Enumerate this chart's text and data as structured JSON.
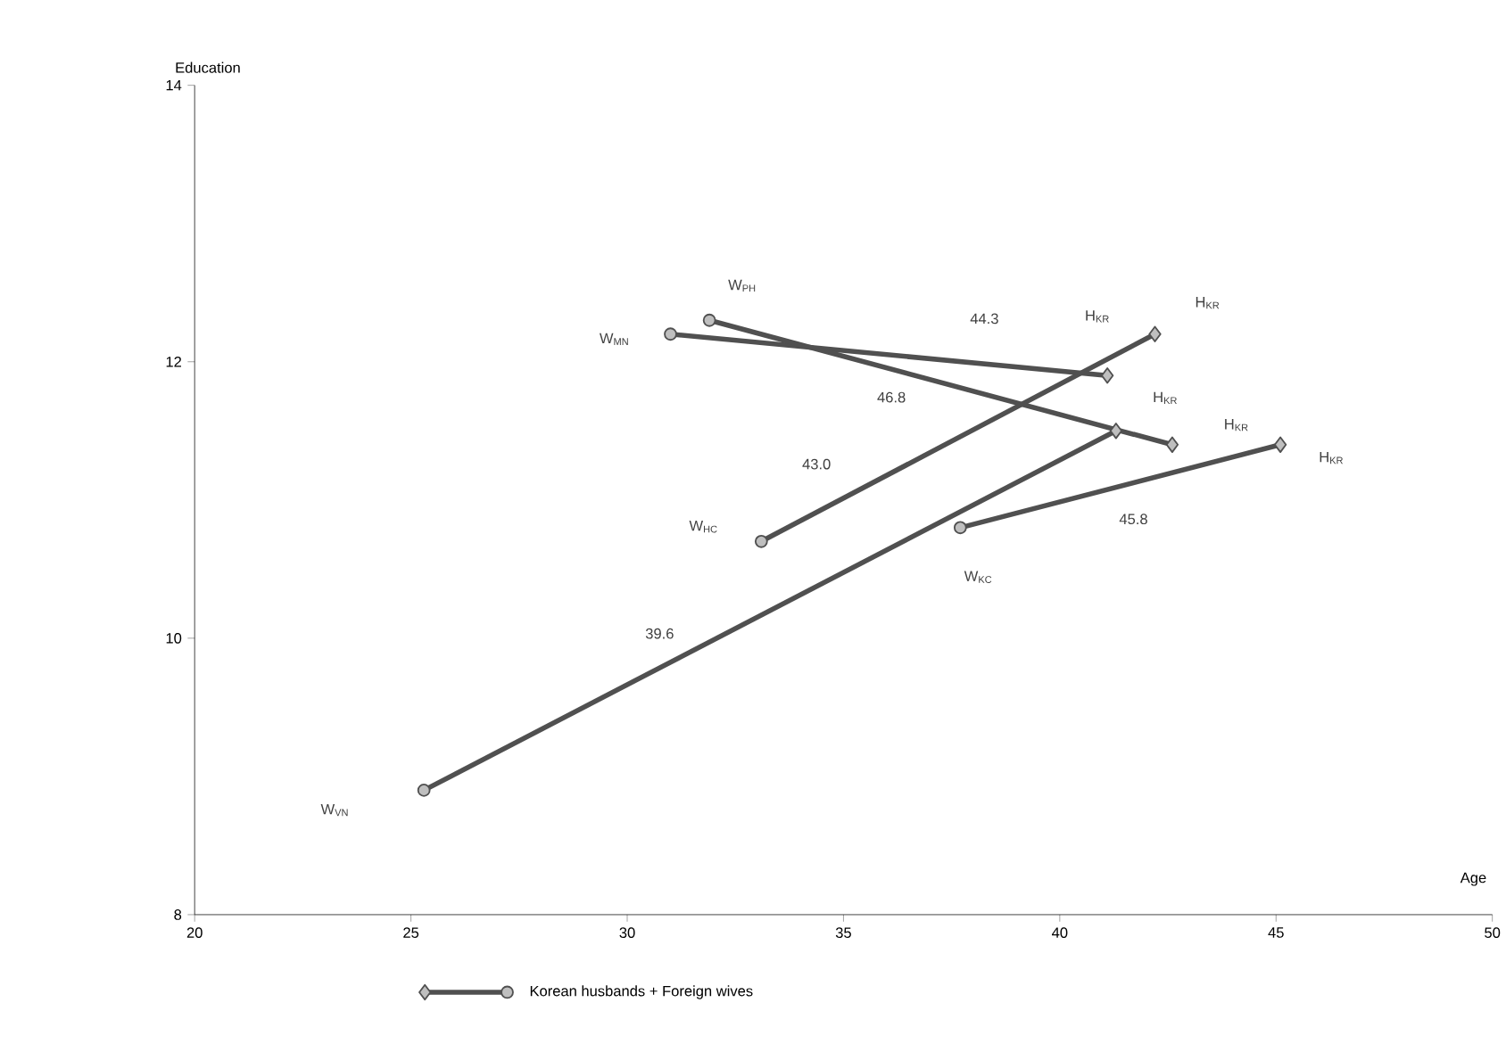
{
  "chart_data": {
    "type": "line",
    "xlabel": "Age",
    "ylabel": "Education",
    "xlim": [
      20,
      50
    ],
    "xticks": [
      20,
      25,
      30,
      35,
      40,
      45,
      50
    ],
    "ylim": [
      8,
      14
    ],
    "yticks": [
      8,
      10,
      12,
      14
    ],
    "marker": [
      "diamond",
      "circle"
    ],
    "legend": "bottom",
    "grid": false,
    "series": [
      {
        "name": "Korean husbands + Foreign wives",
        "color": "#505050",
        "x": [
          41.3,
          25.3
        ],
        "values": [
          11.5,
          8.9
        ]
      },
      {
        "color": "#505050",
        "x": [
          42.2,
          33.1
        ],
        "values": [
          12.2,
          10.7
        ]
      },
      {
        "color": "#505050",
        "x": [
          41.1,
          31.0
        ],
        "values": [
          11.9,
          12.2
        ]
      },
      {
        "color": "#505050",
        "x": [
          42.6,
          31.9
        ],
        "values": [
          11.4,
          12.3
        ]
      },
      {
        "color": "#505050",
        "x": [
          45.1,
          37.7
        ],
        "values": [
          11.4,
          10.8
        ]
      }
    ],
    "annotations": [
      "W$_{VN}$",
      "W$_{HC}$",
      "W$_{MN}$",
      "W$_{PH}$",
      "W$_{KC}$",
      "H$_{KR}$",
      "H$_{KR}$",
      "H$_{KR}$",
      "H$_{KR}$",
      "H$_{KR}$",
      "44.3",
      "46.8",
      "43.0",
      "45.8",
      "39.6"
    ]
  }
}
